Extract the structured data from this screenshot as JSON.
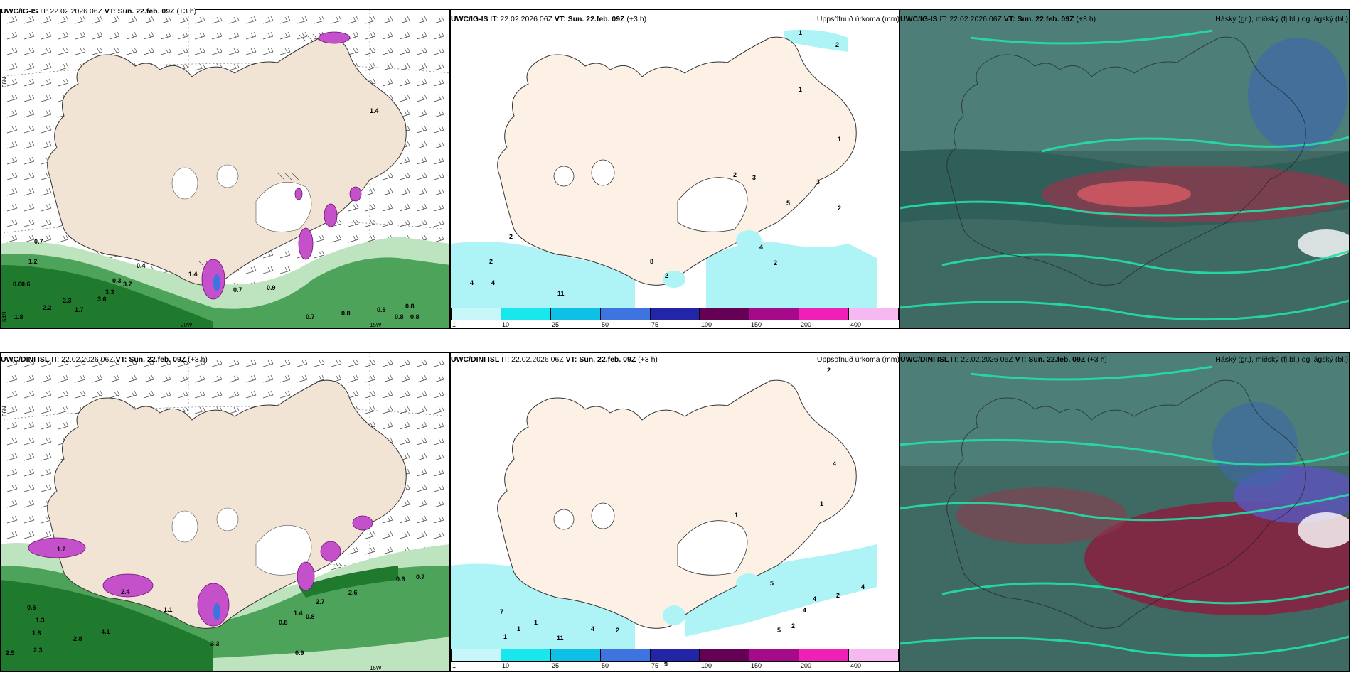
{
  "panels": [
    {
      "id": "p1",
      "title_model": "UWC/IG-IS",
      "title_it": " IT: 22.02.2026 06Z ",
      "title_vt_label": "VT:",
      "title_vt": " Sun. 22.feb. 09Z",
      "title_lead": " (+3 h)",
      "right_title": ""
    },
    {
      "id": "p2",
      "title_model": "UWC/IG-IS",
      "title_it": " IT: 22.02.2026 06Z ",
      "title_vt_label": "VT:",
      "title_vt": " Sun. 22.feb. 09Z",
      "title_lead": " (+3 h)",
      "right_title": "Uppsöfnuð úrkoma (mm)"
    },
    {
      "id": "p3",
      "title_model": "UWC/IG-IS",
      "title_it": " IT: 22.02.2026 06Z ",
      "title_vt_label": "VT:",
      "title_vt": " Sun. 22.feb. 09Z",
      "title_lead": " (+3 h)",
      "right_title": "Háský (gr.), miðský (fj.bl.) og lágský (bl.)"
    },
    {
      "id": "p4",
      "title_model": "UWC/DINI ISL",
      "title_it": " IT: 22.02.2026 06Z ",
      "title_vt_label": "VT:",
      "title_vt": " Sun. 22.feb. 09Z",
      "title_lead": " (+3 h)",
      "right_title": ""
    },
    {
      "id": "p5",
      "title_model": "UWC/DINI ISL",
      "title_it": " IT: 22.02.2026 06Z ",
      "title_vt_label": "VT:",
      "title_vt": " Sun. 22.feb. 09Z",
      "title_lead": " (+3 h)",
      "right_title": "Uppsöfnuð úrkoma (mm)"
    },
    {
      "id": "p6",
      "title_model": "UWC/DINI ISL",
      "title_it": " IT: 22.02.2026 06Z ",
      "title_vt_label": "VT:",
      "title_vt": " Sun. 22.feb. 09Z",
      "title_lead": " (+3 h)",
      "right_title": "Háský (gr.), miðský (fj.bl.) og lágský (bl.)"
    }
  ],
  "colorbar": {
    "ticks": [
      "1",
      "10",
      "25",
      "50",
      "75",
      "100",
      "150",
      "200",
      "400"
    ],
    "colors": [
      "#c8f7fa",
      "#18e8ee",
      "#0fc0e6",
      "#3e74e0",
      "#2226a6",
      "#660055",
      "#a50a8a",
      "#f01fb5",
      "#f5b8f0"
    ]
  },
  "axis_labels": {
    "lat_66": "66N",
    "lon_20w": "20W",
    "lon_15w": "15W"
  },
  "p1_labels": [
    "0.7",
    "1.2",
    "0.6",
    "0.6",
    "2.3",
    "2.2",
    "1.7",
    "1.8",
    "3.3",
    "3.6",
    "3.7",
    "0.3",
    "0.4",
    "0.7",
    "0.9",
    "0.7",
    "0.8",
    "0.8",
    "0.8",
    "0.8",
    "0.8",
    "1.4",
    "1.4"
  ],
  "p4_labels": [
    "1.2",
    "0.5",
    "1.3",
    "1.6",
    "2.8",
    "4.1",
    "2.5",
    "2.3",
    "1.1",
    "3.3",
    "0.8",
    "0.8",
    "1.4",
    "2.7",
    "2.6",
    "0.6",
    "0.7",
    "0.9",
    "2.4"
  ],
  "p2_labels": [
    "1",
    "2",
    "1",
    "1",
    "2",
    "3",
    "3",
    "5",
    "2",
    "4",
    "2",
    "2",
    "2",
    "4",
    "4",
    "11",
    "8",
    "2"
  ],
  "p5_labels": [
    "2",
    "4",
    "1",
    "1",
    "5",
    "4",
    "2",
    "1",
    "1",
    "7",
    "1",
    "4",
    "2",
    "11",
    "9",
    "4",
    "4",
    "5",
    "2"
  ],
  "colors": {
    "land": "#f1e4d4",
    "land_light": "#fdf1e6",
    "green_dark": "#1f7a2e",
    "green_mid": "#4da35a",
    "green_light": "#bde3bf",
    "magenta": "#c451c9",
    "cyan": "#aef3f6",
    "cloud_bg": "#3f6a63"
  }
}
